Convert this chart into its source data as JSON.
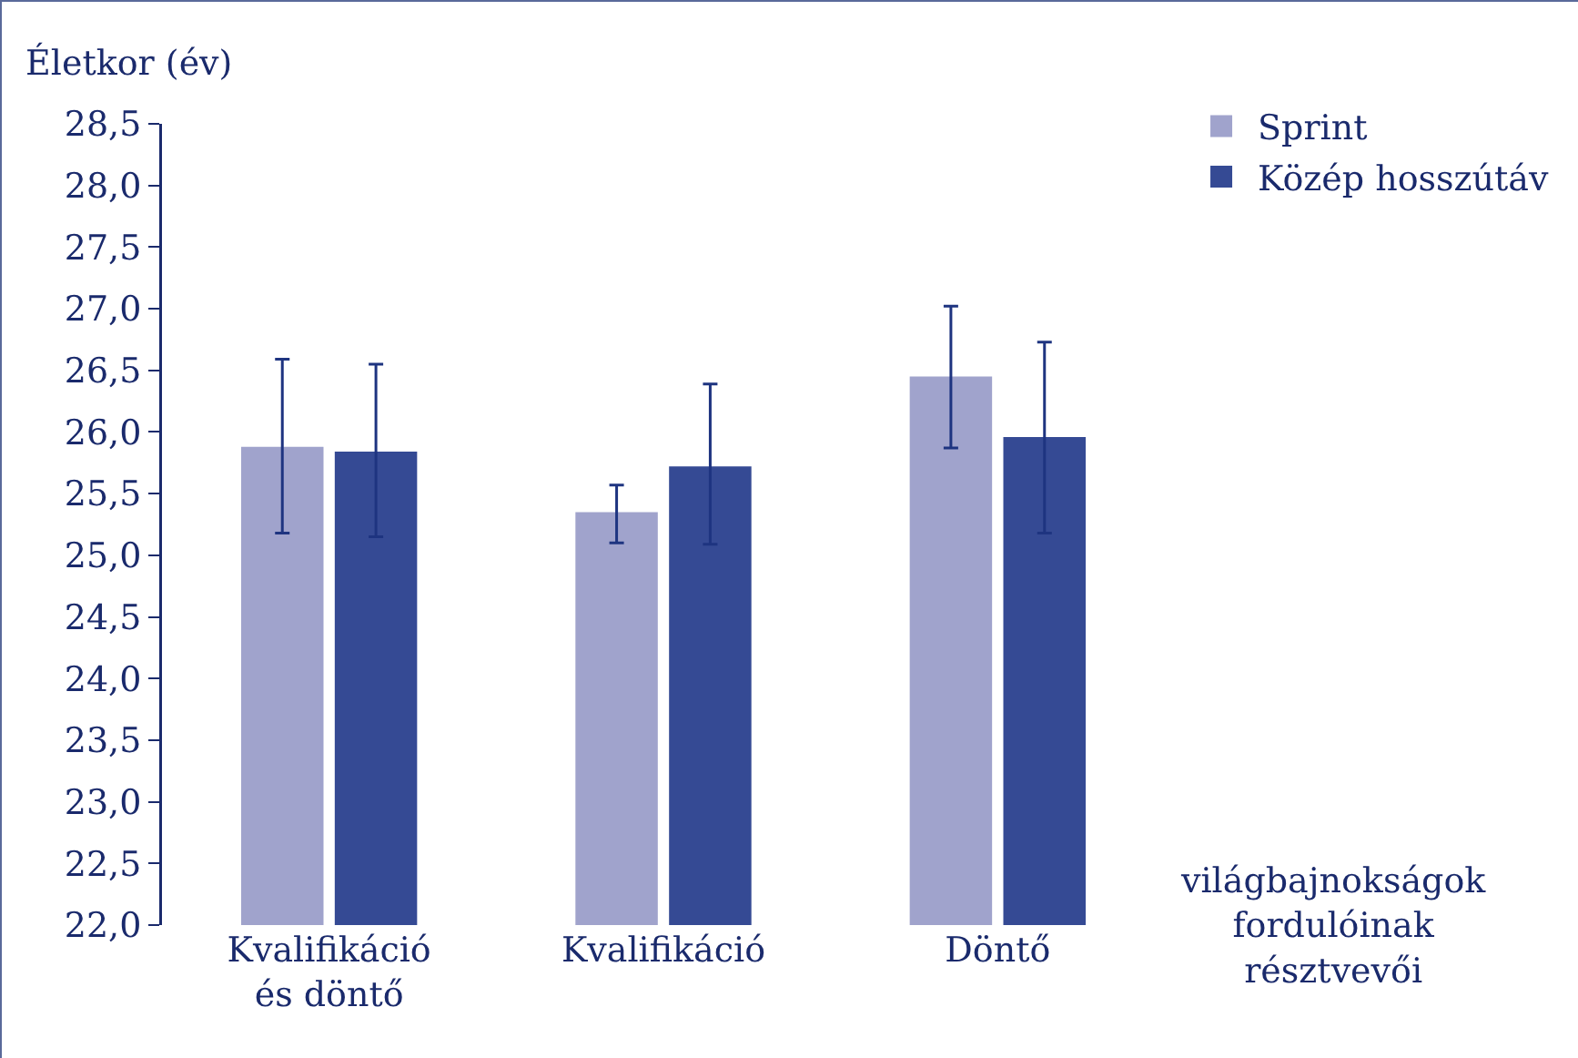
{
  "chart_data": {
    "type": "bar",
    "ylabel": "Életkor (év)",
    "xlabel": "világbajnokságok\nfordulóinak\nrésztvevői",
    "categories": [
      "Kvalifikáció\nés döntő",
      "Kvalifikáció",
      "Döntő"
    ],
    "series": [
      {
        "name": "Sprint",
        "color": "#a0a3cc",
        "values": [
          25.88,
          25.35,
          26.45
        ],
        "errors": [
          [
            25.18,
            26.59
          ],
          [
            25.1,
            25.57
          ],
          [
            25.87,
            27.02
          ]
        ]
      },
      {
        "name": "Közép hosszútáv",
        "color": "#354a94",
        "values": [
          25.84,
          25.72,
          25.96
        ],
        "errors": [
          [
            25.15,
            26.55
          ],
          [
            25.09,
            26.39
          ],
          [
            25.18,
            26.73
          ]
        ]
      }
    ],
    "ylim": [
      22,
      28.5
    ],
    "yticks": [
      {
        "value": 22,
        "label": "22,0"
      },
      {
        "value": 22.5,
        "label": "22,5"
      },
      {
        "value": 23,
        "label": "23,0"
      },
      {
        "value": 23.5,
        "label": "23,5"
      },
      {
        "value": 24,
        "label": "24,0"
      },
      {
        "value": 24.5,
        "label": "24,5"
      },
      {
        "value": 25,
        "label": "25,0"
      },
      {
        "value": 25.5,
        "label": "25,5"
      },
      {
        "value": 26,
        "label": "26,0"
      },
      {
        "value": 26.5,
        "label": "26,5"
      },
      {
        "value": 27,
        "label": "27,0"
      },
      {
        "value": 27.5,
        "label": "27,5"
      },
      {
        "value": 28,
        "label": "28,0"
      },
      {
        "value": 28.5,
        "label": "28,5"
      }
    ],
    "grid": false,
    "legend": "top right"
  }
}
